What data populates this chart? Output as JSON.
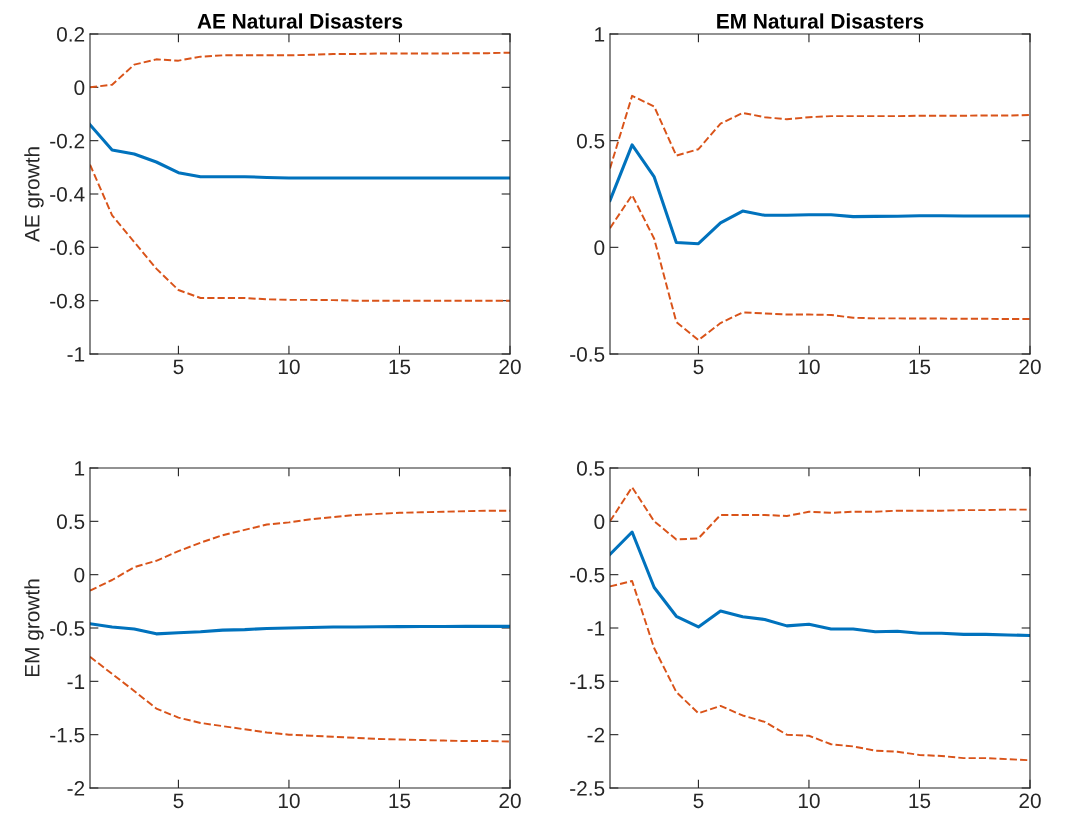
{
  "chart_data": [
    {
      "type": "line",
      "title": "AE Natural Disasters",
      "ylabel": "AE growth",
      "x": [
        1,
        2,
        3,
        4,
        5,
        6,
        7,
        8,
        9,
        10,
        11,
        12,
        13,
        14,
        15,
        16,
        17,
        18,
        19,
        20
      ],
      "xlim": [
        1,
        20
      ],
      "xticks": [
        5,
        10,
        15,
        20
      ],
      "ylim": [
        -1,
        0.2
      ],
      "yticks": [
        -1,
        -0.8,
        -0.6,
        -0.4,
        -0.2,
        0,
        0.2
      ],
      "series": [
        {
          "color": "#0072bd",
          "line_style": "solid",
          "values": [
            -0.14,
            -0.235,
            -0.25,
            -0.28,
            -0.32,
            -0.335,
            -0.335,
            -0.335,
            -0.338,
            -0.34,
            -0.34,
            -0.34,
            -0.34,
            -0.34,
            -0.34,
            -0.34,
            -0.34,
            -0.34,
            -0.34,
            -0.34
          ]
        },
        {
          "color": "#d95319",
          "line_style": "dashed",
          "values": [
            0,
            0.01,
            0.085,
            0.105,
            0.1,
            0.115,
            0.12,
            0.12,
            0.12,
            0.12,
            0.122,
            0.125,
            0.125,
            0.127,
            0.127,
            0.127,
            0.127,
            0.128,
            0.128,
            0.13
          ]
        },
        {
          "color": "#d95319",
          "line_style": "dashed",
          "values": [
            -0.29,
            -0.48,
            -0.58,
            -0.68,
            -0.76,
            -0.79,
            -0.79,
            -0.79,
            -0.795,
            -0.797,
            -0.797,
            -0.798,
            -0.8,
            -0.8,
            -0.8,
            -0.8,
            -0.8,
            -0.8,
            -0.8,
            -0.8
          ]
        }
      ]
    },
    {
      "type": "line",
      "title": "EM Natural Disasters",
      "x": [
        1,
        2,
        3,
        4,
        5,
        6,
        7,
        8,
        9,
        10,
        11,
        12,
        13,
        14,
        15,
        16,
        17,
        18,
        19,
        20
      ],
      "xlim": [
        1,
        20
      ],
      "xticks": [
        5,
        10,
        15,
        20
      ],
      "ylim": [
        -0.5,
        1
      ],
      "yticks": [
        -0.5,
        0,
        0.5,
        1
      ],
      "series": [
        {
          "color": "#0072bd",
          "line_style": "solid",
          "values": [
            0.22,
            0.48,
            0.33,
            0.023,
            0.017,
            0.115,
            0.17,
            0.15,
            0.15,
            0.153,
            0.153,
            0.144,
            0.145,
            0.146,
            0.148,
            0.148,
            0.147,
            0.147,
            0.147,
            0.147
          ]
        },
        {
          "color": "#d95319",
          "line_style": "dashed",
          "values": [
            0.37,
            0.71,
            0.66,
            0.43,
            0.46,
            0.58,
            0.63,
            0.61,
            0.6,
            0.61,
            0.615,
            0.615,
            0.615,
            0.615,
            0.617,
            0.617,
            0.617,
            0.618,
            0.618,
            0.62
          ]
        },
        {
          "color": "#d95319",
          "line_style": "dashed",
          "values": [
            0.09,
            0.245,
            0.04,
            -0.35,
            -0.435,
            -0.355,
            -0.305,
            -0.31,
            -0.315,
            -0.315,
            -0.317,
            -0.33,
            -0.333,
            -0.333,
            -0.334,
            -0.334,
            -0.335,
            -0.335,
            -0.336,
            -0.336
          ]
        }
      ]
    },
    {
      "type": "line",
      "ylabel": "EM growth",
      "x": [
        1,
        2,
        3,
        4,
        5,
        6,
        7,
        8,
        9,
        10,
        11,
        12,
        13,
        14,
        15,
        16,
        17,
        18,
        19,
        20
      ],
      "xlim": [
        1,
        20
      ],
      "xticks": [
        5,
        10,
        15,
        20
      ],
      "ylim": [
        -2,
        1
      ],
      "yticks": [
        -2,
        -1.5,
        -1,
        -0.5,
        0,
        0.5,
        1
      ],
      "series": [
        {
          "color": "#0072bd",
          "line_style": "solid",
          "values": [
            -0.46,
            -0.49,
            -0.51,
            -0.555,
            -0.545,
            -0.535,
            -0.52,
            -0.515,
            -0.505,
            -0.5,
            -0.495,
            -0.49,
            -0.49,
            -0.488,
            -0.487,
            -0.486,
            -0.486,
            -0.485,
            -0.485,
            -0.485
          ]
        },
        {
          "color": "#d95319",
          "line_style": "dashed",
          "values": [
            -0.15,
            -0.05,
            0.07,
            0.13,
            0.22,
            0.3,
            0.37,
            0.42,
            0.47,
            0.49,
            0.52,
            0.54,
            0.56,
            0.57,
            0.58,
            0.585,
            0.59,
            0.595,
            0.6,
            0.6
          ]
        },
        {
          "color": "#d95319",
          "line_style": "dashed",
          "values": [
            -0.77,
            -0.93,
            -1.09,
            -1.255,
            -1.34,
            -1.39,
            -1.42,
            -1.45,
            -1.48,
            -1.5,
            -1.51,
            -1.52,
            -1.53,
            -1.54,
            -1.545,
            -1.55,
            -1.555,
            -1.56,
            -1.56,
            -1.565
          ]
        }
      ]
    },
    {
      "type": "line",
      "x": [
        1,
        2,
        3,
        4,
        5,
        6,
        7,
        8,
        9,
        10,
        11,
        12,
        13,
        14,
        15,
        16,
        17,
        18,
        19,
        20
      ],
      "xlim": [
        1,
        20
      ],
      "xticks": [
        5,
        10,
        15,
        20
      ],
      "ylim": [
        -2.5,
        0.5
      ],
      "yticks": [
        -2.5,
        -2,
        -1.5,
        -1,
        -0.5,
        0,
        0.5
      ],
      "series": [
        {
          "color": "#0072bd",
          "line_style": "solid",
          "values": [
            -0.31,
            -0.1,
            -0.62,
            -0.89,
            -0.99,
            -0.84,
            -0.895,
            -0.92,
            -0.98,
            -0.965,
            -1.01,
            -1.01,
            -1.035,
            -1.03,
            -1.05,
            -1.05,
            -1.06,
            -1.06,
            -1.065,
            -1.07
          ]
        },
        {
          "color": "#d95319",
          "line_style": "dashed",
          "values": [
            0,
            0.32,
            0,
            -0.17,
            -0.16,
            0.06,
            0.06,
            0.06,
            0.05,
            0.09,
            0.08,
            0.09,
            0.09,
            0.1,
            0.1,
            0.1,
            0.105,
            0.105,
            0.11,
            0.11
          ]
        },
        {
          "color": "#d95319",
          "line_style": "dashed",
          "values": [
            -0.61,
            -0.56,
            -1.19,
            -1.6,
            -1.8,
            -1.73,
            -1.82,
            -1.88,
            -2.0,
            -2.01,
            -2.09,
            -2.11,
            -2.15,
            -2.16,
            -2.19,
            -2.2,
            -2.22,
            -2.22,
            -2.23,
            -2.24
          ]
        }
      ]
    }
  ]
}
